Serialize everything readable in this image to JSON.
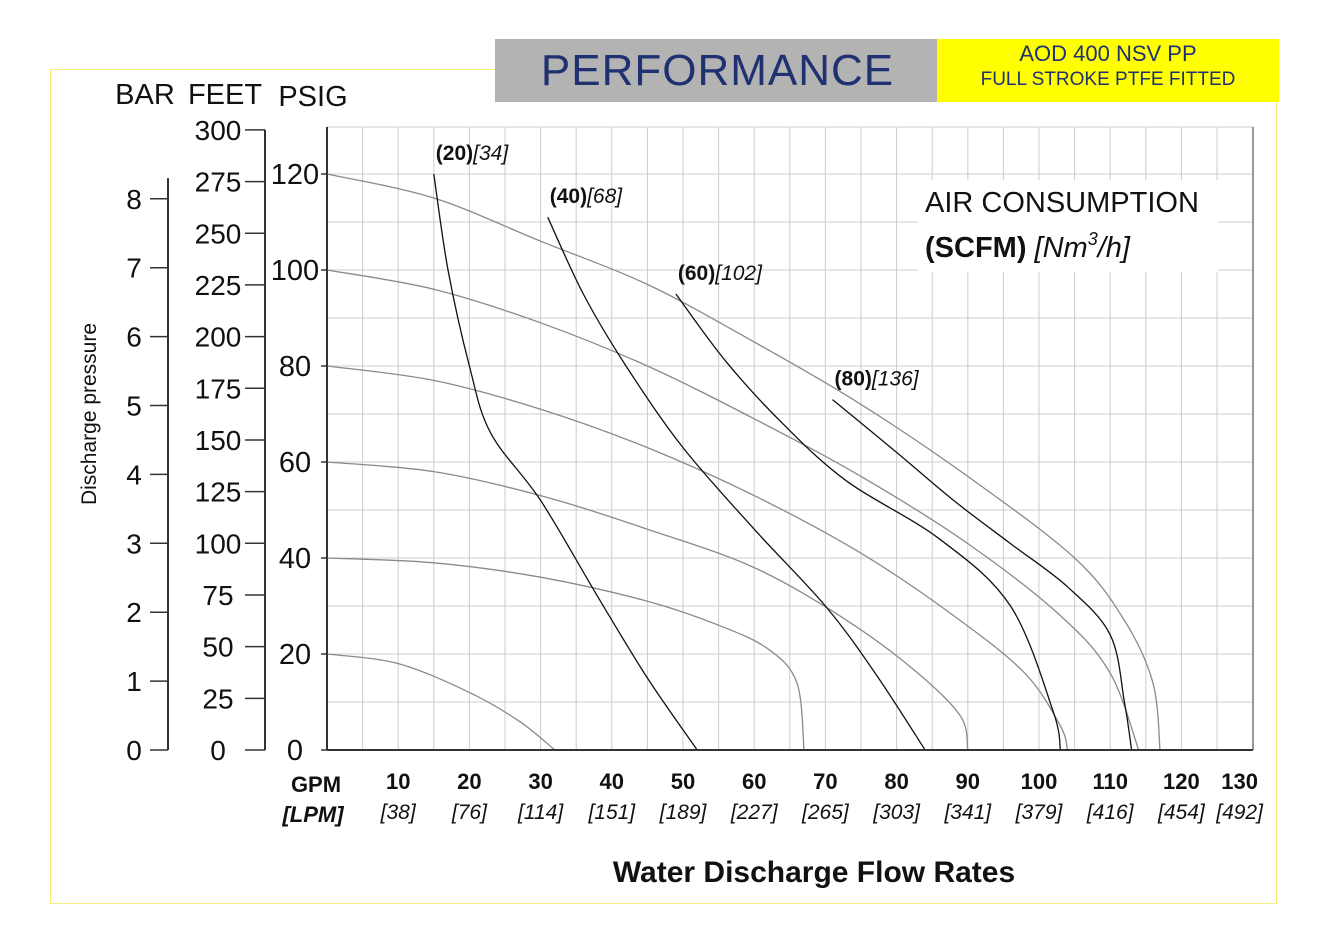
{
  "header": {
    "title": "PERFORMANCE",
    "model": "AOD 400 NSV PP",
    "subtitle": "FULL STROKE PTFE FITTED"
  },
  "colors": {
    "curve_dark": "#111111",
    "curve_gray": "#8a8a8a",
    "grid": "#cccccc",
    "title": "#1f3170",
    "banner": "#ffff00"
  },
  "chart_data": {
    "type": "line",
    "title": "PERFORMANCE",
    "xlabel": "Water Discharge Flow Rates",
    "x_unit_primary": "GPM",
    "x_unit_secondary": "[LPM]",
    "xlim": [
      0,
      130
    ],
    "x_ticks": [
      {
        "v": 10,
        "gpm": "10",
        "lpm": "[38]"
      },
      {
        "v": 20,
        "gpm": "20",
        "lpm": "[76]"
      },
      {
        "v": 30,
        "gpm": "30",
        "lpm": "[114]"
      },
      {
        "v": 40,
        "gpm": "40",
        "lpm": "[151]"
      },
      {
        "v": 50,
        "gpm": "50",
        "lpm": "[189]"
      },
      {
        "v": 60,
        "gpm": "60",
        "lpm": "[227]"
      },
      {
        "v": 70,
        "gpm": "70",
        "lpm": "[265]"
      },
      {
        "v": 80,
        "gpm": "80",
        "lpm": "[303]"
      },
      {
        "v": 90,
        "gpm": "90",
        "lpm": "[341]"
      },
      {
        "v": 100,
        "gpm": "100",
        "lpm": "[379]"
      },
      {
        "v": 110,
        "gpm": "110",
        "lpm": "[416]"
      },
      {
        "v": 120,
        "gpm": "120",
        "lpm": "[454]"
      },
      {
        "v": 130,
        "gpm": "130",
        "lpm": "[492]"
      }
    ],
    "ylabel": "Discharge pressure",
    "y_units": {
      "bar": "BAR",
      "feet": "FEET",
      "psig": "PSIG"
    },
    "ylim": [
      0,
      120
    ],
    "y_ticks_psig": [
      "0",
      "20",
      "40",
      "60",
      "80",
      "100",
      "120"
    ],
    "y_ticks_bar": [
      "0",
      "1",
      "2",
      "3",
      "4",
      "5",
      "6",
      "7",
      "8"
    ],
    "y_ticks_feet": [
      "0",
      "25",
      "50",
      "75",
      "100",
      "125",
      "150",
      "175",
      "200",
      "225",
      "250",
      "275",
      "300"
    ],
    "grid": true,
    "legend_title_1": "AIR CONSUMPTION",
    "legend_title_2a": "(SCFM)",
    "legend_title_2b": "[Nm",
    "legend_title_2c": "3",
    "legend_title_2d": "/h]",
    "air_curves": [
      {
        "scfm": "(20)",
        "nm3": "[34]",
        "points": [
          [
            15,
            120
          ],
          [
            17,
            100
          ],
          [
            20,
            80
          ],
          [
            23,
            66
          ],
          [
            30,
            52
          ],
          [
            38,
            32
          ],
          [
            45,
            15
          ],
          [
            52,
            0
          ]
        ]
      },
      {
        "scfm": "(40)",
        "nm3": "[68]",
        "points": [
          [
            31,
            111
          ],
          [
            36,
            95
          ],
          [
            42,
            80
          ],
          [
            50,
            63
          ],
          [
            60,
            46
          ],
          [
            70,
            30
          ],
          [
            77,
            16
          ],
          [
            84,
            0
          ]
        ]
      },
      {
        "scfm": "(60)",
        "nm3": "[102]",
        "points": [
          [
            49,
            95
          ],
          [
            56,
            81
          ],
          [
            64,
            68
          ],
          [
            73,
            56
          ],
          [
            86,
            44
          ],
          [
            96,
            30
          ],
          [
            102,
            8
          ],
          [
            103,
            0
          ]
        ]
      },
      {
        "scfm": "(80)",
        "nm3": "[136]",
        "points": [
          [
            71,
            73
          ],
          [
            80,
            62
          ],
          [
            88,
            52
          ],
          [
            96,
            43
          ],
          [
            104,
            34
          ],
          [
            110,
            24
          ],
          [
            112,
            10
          ],
          [
            113,
            0
          ]
        ]
      }
    ],
    "pressure_curves": [
      {
        "points": [
          [
            0,
            120
          ],
          [
            15,
            115
          ],
          [
            30,
            106
          ],
          [
            45,
            97
          ],
          [
            60,
            85
          ],
          [
            75,
            72
          ],
          [
            90,
            57
          ],
          [
            105,
            40
          ],
          [
            112,
            27
          ],
          [
            116,
            14
          ],
          [
            117,
            0
          ]
        ]
      },
      {
        "points": [
          [
            0,
            100
          ],
          [
            15,
            96
          ],
          [
            30,
            89
          ],
          [
            45,
            80
          ],
          [
            60,
            69
          ],
          [
            75,
            57
          ],
          [
            90,
            43
          ],
          [
            103,
            28
          ],
          [
            110,
            16
          ],
          [
            114,
            0
          ]
        ]
      },
      {
        "points": [
          [
            0,
            80
          ],
          [
            15,
            77
          ],
          [
            30,
            71
          ],
          [
            45,
            63
          ],
          [
            60,
            53
          ],
          [
            75,
            41
          ],
          [
            88,
            28
          ],
          [
            98,
            16
          ],
          [
            103,
            5
          ],
          [
            104,
            0
          ]
        ]
      },
      {
        "points": [
          [
            0,
            60
          ],
          [
            15,
            58
          ],
          [
            30,
            53
          ],
          [
            45,
            46
          ],
          [
            60,
            38
          ],
          [
            73,
            27
          ],
          [
            83,
            16
          ],
          [
            89,
            7
          ],
          [
            90,
            0
          ]
        ]
      },
      {
        "points": [
          [
            0,
            40
          ],
          [
            15,
            39
          ],
          [
            30,
            36
          ],
          [
            45,
            31
          ],
          [
            55,
            26
          ],
          [
            62,
            21
          ],
          [
            66,
            14
          ],
          [
            67,
            0
          ]
        ]
      },
      {
        "points": [
          [
            0,
            20
          ],
          [
            10,
            18
          ],
          [
            20,
            12
          ],
          [
            27,
            6
          ],
          [
            32,
            0
          ]
        ]
      }
    ]
  }
}
